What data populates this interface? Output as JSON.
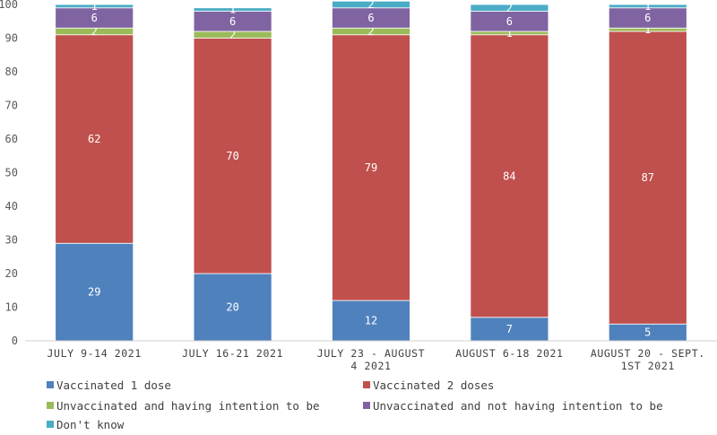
{
  "chart_data": {
    "type": "bar",
    "stacked": true,
    "categories": [
      [
        "JULY 9-14 2021"
      ],
      [
        "JULY 16-21 2021"
      ],
      [
        "JULY 23 - AUGUST",
        "4 2021"
      ],
      [
        "AUGUST 6-18 2021"
      ],
      [
        "AUGUST 20 - SEPT.",
        "1ST 2021"
      ]
    ],
    "series": [
      {
        "name": "Vaccinated 1 dose",
        "color": "#4f81bd",
        "values": [
          29,
          20,
          12,
          7,
          5
        ]
      },
      {
        "name": "Vaccinated 2 doses",
        "color": "#c0504d",
        "values": [
          62,
          70,
          79,
          84,
          87
        ]
      },
      {
        "name": "Unvaccinated and having intention to be",
        "color": "#9bbb59",
        "values": [
          2,
          2,
          2,
          1,
          1
        ]
      },
      {
        "name": "Unvaccinated and not having intention to be",
        "color": "#8064a2",
        "values": [
          6,
          6,
          6,
          6,
          6
        ]
      },
      {
        "name": "Don't know",
        "color": "#4bacc6",
        "values": [
          1,
          1,
          2,
          2,
          1
        ]
      }
    ],
    "data_labels": [
      [
        "29",
        "20",
        "12",
        "7",
        "5"
      ],
      [
        "62",
        "70",
        "79",
        "84",
        "87"
      ],
      [
        "2",
        "2",
        "2",
        "1",
        "1"
      ],
      [
        "6",
        "6",
        "6",
        "6",
        "6"
      ],
      [
        "1",
        "1",
        "2",
        "2",
        "1"
      ]
    ],
    "yticks": [
      "0",
      "10",
      "20",
      "30",
      "40",
      "50",
      "60",
      "70",
      "80",
      "90",
      "100"
    ],
    "ylim": [
      0,
      100
    ],
    "grid": false,
    "legend_position": "bottom",
    "title": "",
    "xlabel": "",
    "ylabel": ""
  }
}
